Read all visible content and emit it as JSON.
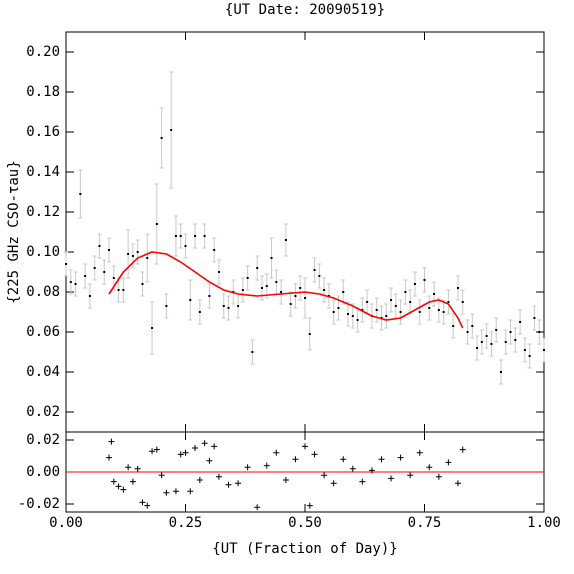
{
  "chart_data": [
    {
      "type": "scatter",
      "title": "{UT Date: 20090519}",
      "y_label": "{225 GHz CSO-τau}",
      "xlim": [
        0,
        1
      ],
      "ylim": [
        0.01,
        0.21
      ],
      "yticks": [
        {
          "value": 0.02,
          "label": "0.02"
        },
        0.04,
        0.06,
        0.08,
        {
          "value": 0.1,
          "label": "0.10"
        },
        0.12,
        0.14,
        0.16,
        0.18,
        {
          "value": 0.2,
          "label": "0.20"
        }
      ],
      "series": [
        {
          "kind": "points",
          "color": "#000000",
          "error_color": "#c8c8c8",
          "x": [
            0,
            0.01,
            0.02,
            0.03,
            0.04,
            0.05,
            0.06,
            0.07,
            0.08,
            0.09,
            0.1,
            0.11,
            0.12,
            0.13,
            0.14,
            0.15,
            0.16,
            0.17,
            0.18,
            0.19,
            0.2,
            0.21,
            0.22,
            0.23,
            0.24,
            0.25,
            0.26,
            0.27,
            0.28,
            0.29,
            0.3,
            0.31,
            0.32,
            0.33,
            0.34,
            0.35,
            0.36,
            0.37,
            0.38,
            0.39,
            0.4,
            0.41,
            0.42,
            0.43,
            0.44,
            0.45,
            0.46,
            0.47,
            0.48,
            0.49,
            0.5,
            0.51,
            0.52,
            0.53,
            0.54,
            0.55,
            0.56,
            0.57,
            0.58,
            0.59,
            0.6,
            0.61,
            0.62,
            0.63,
            0.64,
            0.65,
            0.66,
            0.67,
            0.68,
            0.69,
            0.7,
            0.71,
            0.72,
            0.73,
            0.74,
            0.75,
            0.76,
            0.77,
            0.78,
            0.79,
            0.8,
            0.81,
            0.82,
            0.83,
            0.84,
            0.85,
            0.86,
            0.87,
            0.88,
            0.89,
            0.9,
            0.91,
            0.92,
            0.93,
            0.94,
            0.95,
            0.96,
            0.97,
            0.98,
            0.99,
            1
          ],
          "values": [
            0.094,
            0.085,
            0.084,
            0.129,
            0.088,
            0.078,
            0.092,
            0.103,
            0.09,
            0.101,
            0.087,
            0.081,
            0.081,
            0.099,
            0.098,
            0.1,
            0.084,
            0.097,
            0.062,
            0.114,
            0.157,
            0.073,
            0.161,
            0.108,
            0.108,
            0.103,
            0.076,
            0.108,
            0.07,
            0.108,
            0.078,
            0.101,
            0.09,
            0.073,
            0.072,
            0.08,
            0.073,
            0.081,
            0.087,
            0.05,
            0.092,
            0.082,
            0.083,
            0.097,
            0.085,
            0.08,
            0.106,
            0.074,
            0.078,
            0.082,
            0.077,
            0.059,
            0.091,
            0.088,
            0.081,
            0.078,
            0.07,
            0.072,
            0.08,
            0.069,
            0.068,
            0.066,
            0.071,
            0.075,
            0.068,
            0.071,
            0.067,
            0.068,
            0.076,
            0.073,
            0.07,
            0.08,
            0.075,
            0.084,
            0.07,
            0.086,
            0.072,
            0.079,
            0.071,
            0.07,
            0.075,
            0.063,
            0.082,
            0.075,
            0.06,
            0.063,
            0.052,
            0.055,
            0.058,
            0.054,
            0.061,
            0.04,
            0.055,
            0.06,
            0.056,
            0.065,
            0.051,
            0.048,
            0.067,
            0.06,
            0.051
          ],
          "errors": [
            0.006,
            0.006,
            0.006,
            0.012,
            0.006,
            0.006,
            0.006,
            0.006,
            0.006,
            0.006,
            0.006,
            0.006,
            0.006,
            0.012,
            0.006,
            0.006,
            0.006,
            0.012,
            0.013,
            0.02,
            0.015,
            0.006,
            0.029,
            0.01,
            0.006,
            0.006,
            0.01,
            0.006,
            0.006,
            0.006,
            0.006,
            0.006,
            0.006,
            0.006,
            0.006,
            0.006,
            0.006,
            0.006,
            0.006,
            0.006,
            0.006,
            0.006,
            0.006,
            0.01,
            0.006,
            0.006,
            0.008,
            0.006,
            0.006,
            0.006,
            0.01,
            0.008,
            0.006,
            0.006,
            0.006,
            0.006,
            0.006,
            0.006,
            0.006,
            0.006,
            0.006,
            0.006,
            0.006,
            0.006,
            0.006,
            0.006,
            0.006,
            0.006,
            0.006,
            0.006,
            0.006,
            0.006,
            0.006,
            0.006,
            0.006,
            0.006,
            0.006,
            0.006,
            0.006,
            0.006,
            0.006,
            0.006,
            0.006,
            0.006,
            0.006,
            0.006,
            0.006,
            0.006,
            0.006,
            0.006,
            0.006,
            0.006,
            0.006,
            0.006,
            0.006,
            0.006,
            0.006,
            0.006,
            0.006,
            0.006,
            0.006
          ]
        },
        {
          "kind": "line",
          "color": "#ff0000",
          "x": [
            0.09,
            0.12,
            0.15,
            0.18,
            0.21,
            0.24,
            0.27,
            0.3,
            0.33,
            0.36,
            0.4,
            0.45,
            0.5,
            0.53,
            0.56,
            0.6,
            0.64,
            0.67,
            0.7,
            0.73,
            0.76,
            0.78,
            0.8,
            0.82,
            0.83
          ],
          "values": [
            0.079,
            0.09,
            0.097,
            0.1,
            0.099,
            0.095,
            0.09,
            0.085,
            0.081,
            0.079,
            0.078,
            0.079,
            0.08,
            0.079,
            0.077,
            0.073,
            0.068,
            0.066,
            0.067,
            0.071,
            0.075,
            0.076,
            0.074,
            0.067,
            0.062
          ]
        }
      ]
    },
    {
      "type": "scatter",
      "x_label": "{UT (Fraction of Day)}",
      "xlim": [
        0,
        1
      ],
      "ylim": [
        -0.025,
        0.025
      ],
      "xticks": [
        {
          "value": 0,
          "label": "0.00"
        },
        0.25,
        {
          "value": 0.5,
          "label": "0.50"
        },
        0.75,
        {
          "value": 1,
          "label": "1.00"
        }
      ],
      "yticks": [
        -0.02,
        {
          "value": 0,
          "label": "0.00"
        },
        0.02
      ],
      "hline": 0,
      "hline_color": "#ff0000",
      "color": "#000000",
      "x": [
        0.09,
        0.095,
        0.1,
        0.11,
        0.12,
        0.13,
        0.14,
        0.15,
        0.16,
        0.17,
        0.18,
        0.19,
        0.2,
        0.21,
        0.23,
        0.24,
        0.25,
        0.26,
        0.27,
        0.28,
        0.29,
        0.3,
        0.31,
        0.32,
        0.34,
        0.36,
        0.38,
        0.4,
        0.42,
        0.44,
        0.46,
        0.48,
        0.5,
        0.51,
        0.52,
        0.54,
        0.56,
        0.58,
        0.6,
        0.62,
        0.64,
        0.66,
        0.68,
        0.7,
        0.72,
        0.74,
        0.76,
        0.78,
        0.8,
        0.82,
        0.83
      ],
      "values": [
        0.009,
        0.019,
        -0.006,
        -0.009,
        -0.011,
        0.003,
        -0.006,
        0.002,
        -0.019,
        -0.021,
        0.013,
        0.014,
        -0.002,
        -0.013,
        -0.012,
        0.011,
        0.012,
        -0.012,
        0.015,
        -0.005,
        0.018,
        0.007,
        0.016,
        -0.003,
        -0.008,
        -0.007,
        0.003,
        -0.022,
        0.004,
        0.012,
        -0.005,
        0.008,
        0.016,
        -0.021,
        0.011,
        -0.002,
        -0.007,
        0.008,
        0.002,
        -0.006,
        0.001,
        0.008,
        -0.004,
        0.009,
        -0.002,
        0.012,
        0.003,
        -0.003,
        0.006,
        -0.007,
        0.014
      ]
    }
  ]
}
